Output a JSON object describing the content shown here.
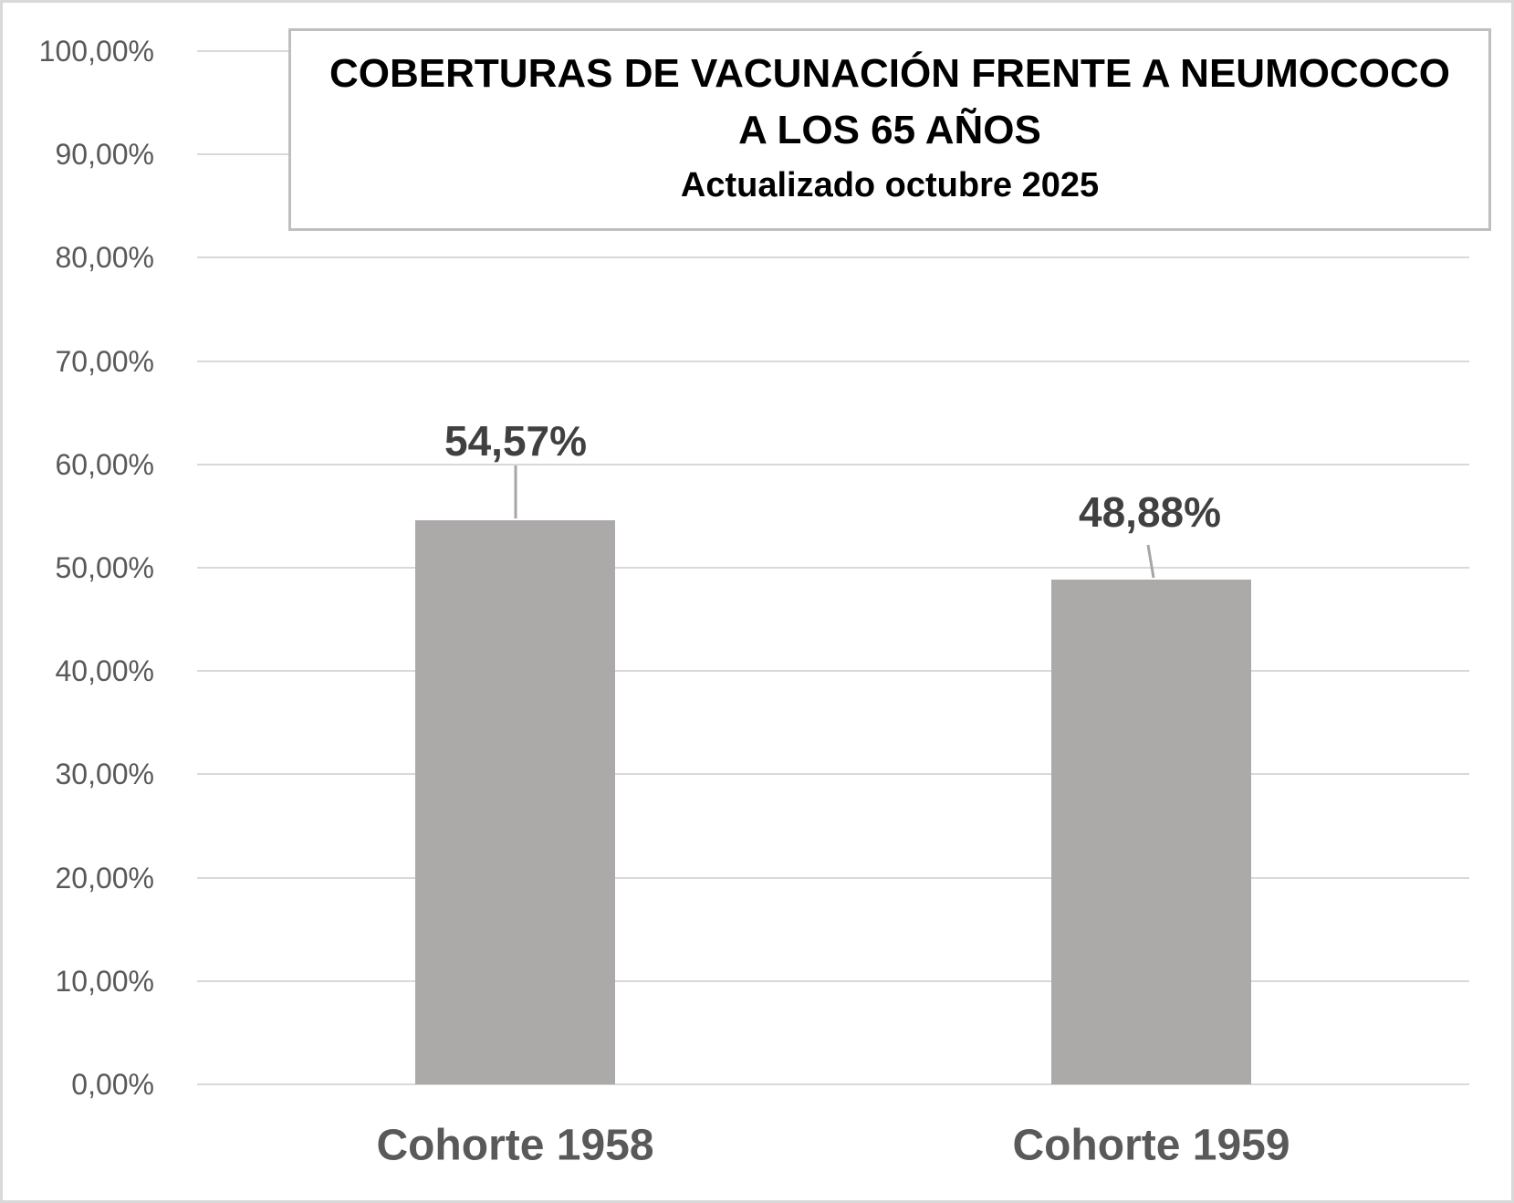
{
  "chart_data": {
    "type": "bar",
    "title": "COBERTURAS DE VACUNACIÓN FRENTE A NEUMOCOCO A LOS 65 AÑOS Actualizado octubre 2025",
    "title_lines": [
      "COBERTURAS DE VACUNACIÓN FRENTE A NEUMOCOCO",
      "A LOS 65 AÑOS",
      "Actualizado octubre 2025"
    ],
    "categories": [
      "Cohorte 1958",
      "Cohorte 1959"
    ],
    "values": [
      54.57,
      48.88
    ],
    "data_labels": [
      "54,57%",
      "48,88%"
    ],
    "xlabel": "",
    "ylabel": "",
    "ylim": [
      0,
      100
    ],
    "y_tick_step": 10,
    "y_tick_values": [
      0,
      10,
      20,
      30,
      40,
      50,
      60,
      70,
      80,
      90,
      100
    ],
    "y_tick_labels": [
      "0,00%",
      "10,00%",
      "20,00%",
      "30,00%",
      "40,00%",
      "50,00%",
      "60,00%",
      "70,00%",
      "80,00%",
      "90,00%",
      "100,00%"
    ],
    "grid": true,
    "legend_position": "none",
    "colors": {
      "bar_fill": "#ACA9A9",
      "gridline": "#D9D9D9",
      "axis_label_text": "#595959",
      "category_label_text": "#595959",
      "data_label_text": "#404040",
      "leader_line": "#A6A6A6",
      "title_text": "#000000",
      "title_border": "#BFBFBF",
      "outer_border": "#D9D9D9",
      "background": "#FFFFFF"
    }
  }
}
